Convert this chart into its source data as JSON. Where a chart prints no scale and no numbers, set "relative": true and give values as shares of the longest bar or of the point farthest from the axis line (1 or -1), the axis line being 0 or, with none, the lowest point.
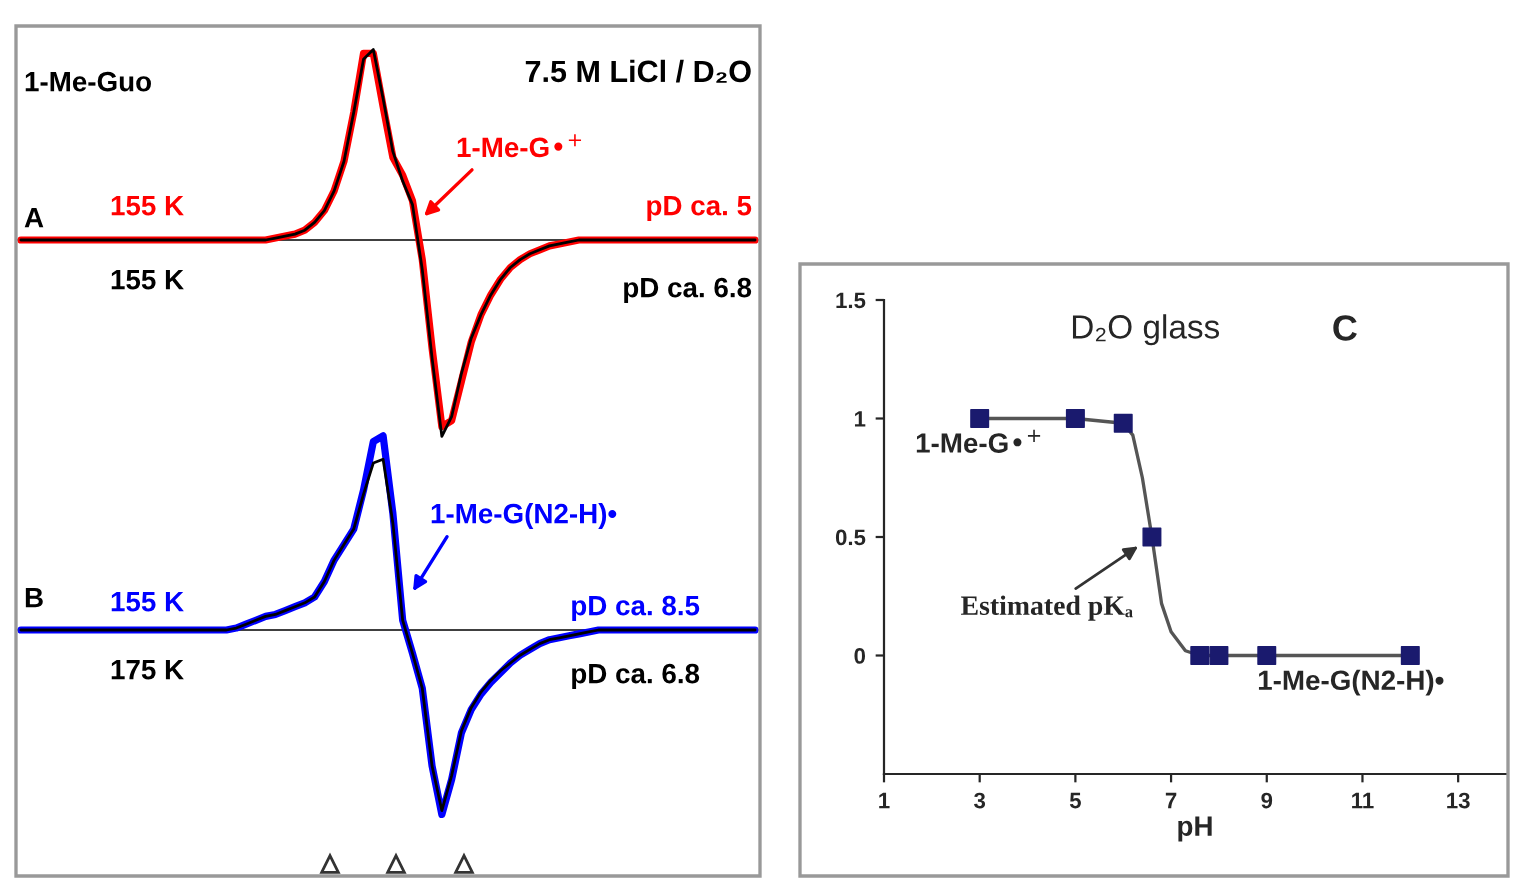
{
  "chart_data": [
    {
      "type": "line",
      "relative": true,
      "categories": [
        null,
        null,
        null,
        null,
        null,
        null,
        null,
        null,
        null,
        null,
        null,
        null,
        null,
        null,
        null,
        null,
        null,
        null,
        null,
        null,
        null,
        null,
        null,
        null,
        null,
        null,
        null,
        null,
        null,
        null,
        null,
        null,
        null,
        null,
        null,
        null,
        null,
        null,
        null,
        null,
        null,
        null,
        null,
        null,
        null,
        null,
        null,
        null,
        null,
        null,
        null,
        null,
        null,
        null,
        null,
        null,
        null,
        null,
        null,
        null,
        null,
        null,
        null,
        null,
        null,
        null,
        null,
        null,
        null,
        null,
        null,
        null,
        null,
        null,
        null,
        null
      ],
      "series": [
        {
          "color": "#ff0000",
          "values": [
            0,
            0,
            0,
            0,
            0,
            0,
            0,
            0,
            0,
            0,
            0,
            0,
            0,
            0,
            0,
            0,
            0,
            0,
            0,
            0,
            0,
            0,
            0,
            0,
            0,
            0,
            0.01,
            0.02,
            0.03,
            0.05,
            0.09,
            0.15,
            0.25,
            0.4,
            0.65,
            0.95,
            0.95,
            0.68,
            0.42,
            0.33,
            0.2,
            -0.1,
            -0.55,
            -0.95,
            -0.92,
            -0.72,
            -0.52,
            -0.38,
            -0.28,
            -0.2,
            -0.14,
            -0.1,
            -0.07,
            -0.05,
            -0.03,
            -0.02,
            -0.01,
            0,
            0,
            0,
            0,
            0,
            0,
            0,
            0,
            0,
            0,
            0,
            0,
            0,
            0,
            0,
            0,
            0,
            0,
            0
          ]
        },
        {
          "color": "#000000",
          "values": [
            0,
            0,
            0,
            0,
            0,
            0,
            0,
            0,
            0,
            0,
            0,
            0,
            0,
            0,
            0,
            0,
            0,
            0,
            0,
            0,
            0,
            0,
            0,
            0,
            0,
            0,
            0.01,
            0.02,
            0.03,
            0.05,
            0.09,
            0.15,
            0.25,
            0.4,
            0.65,
            0.92,
            0.97,
            0.72,
            0.45,
            0.3,
            0.18,
            -0.15,
            -0.6,
            -1.0,
            -0.9,
            -0.68,
            -0.5,
            -0.38,
            -0.28,
            -0.2,
            -0.14,
            -0.1,
            -0.07,
            -0.05,
            -0.03,
            -0.02,
            -0.01,
            0,
            0,
            0,
            0,
            0,
            0,
            0,
            0,
            0,
            0,
            0,
            0,
            0,
            0,
            0,
            0,
            0,
            0,
            0
          ]
        }
      ],
      "annotations": [
        "1-Me-Guo",
        "7.5 M LiCl / D₂O",
        "A",
        "155 K",
        "pD ca. 5",
        "155 K",
        "pD ca. 6.8",
        "1-Me-G•$^{+}$"
      ]
    },
    {
      "type": "line",
      "relative": true,
      "categories": [
        null,
        null,
        null,
        null,
        null,
        null,
        null,
        null,
        null,
        null,
        null,
        null,
        null,
        null,
        null,
        null,
        null,
        null,
        null,
        null,
        null,
        null,
        null,
        null,
        null,
        null,
        null,
        null,
        null,
        null,
        null,
        null,
        null,
        null,
        null,
        null,
        null,
        null,
        null,
        null,
        null,
        null,
        null,
        null,
        null,
        null,
        null,
        null,
        null,
        null,
        null,
        null,
        null,
        null,
        null,
        null,
        null,
        null,
        null,
        null,
        null,
        null,
        null,
        null,
        null,
        null,
        null,
        null,
        null,
        null,
        null,
        null,
        null,
        null,
        null,
        null
      ],
      "series": [
        {
          "color": "#0000ff",
          "values": [
            0,
            0,
            0,
            0,
            0,
            0,
            0,
            0,
            0,
            0,
            0,
            0,
            0,
            0,
            0,
            0,
            0,
            0,
            0,
            0,
            0,
            0,
            0.01,
            0.03,
            0.05,
            0.07,
            0.08,
            0.1,
            0.12,
            0.14,
            0.17,
            0.25,
            0.36,
            0.44,
            0.52,
            0.72,
            0.97,
            1.0,
            0.6,
            0.05,
            -0.12,
            -0.3,
            -0.7,
            -0.95,
            -0.77,
            -0.53,
            -0.41,
            -0.33,
            -0.27,
            -0.22,
            -0.17,
            -0.13,
            -0.1,
            -0.07,
            -0.05,
            -0.04,
            -0.03,
            -0.02,
            -0.01,
            0,
            0,
            0,
            0,
            0,
            0,
            0,
            0,
            0,
            0,
            0,
            0,
            0,
            0,
            0,
            0,
            0
          ]
        },
        {
          "color": "#000000",
          "values": [
            0,
            0,
            0,
            0,
            0,
            0,
            0,
            0,
            0,
            0,
            0,
            0,
            0,
            0,
            0,
            0,
            0,
            0,
            0,
            0,
            0,
            0,
            0.01,
            0.03,
            0.05,
            0.07,
            0.08,
            0.1,
            0.12,
            0.14,
            0.17,
            0.25,
            0.36,
            0.44,
            0.52,
            0.7,
            0.86,
            0.88,
            0.55,
            0.05,
            -0.12,
            -0.3,
            -0.7,
            -0.93,
            -0.75,
            -0.52,
            -0.4,
            -0.32,
            -0.26,
            -0.21,
            -0.17,
            -0.13,
            -0.1,
            -0.07,
            -0.05,
            -0.04,
            -0.03,
            -0.02,
            -0.01,
            0,
            0,
            0,
            0,
            0,
            0,
            0,
            0,
            0,
            0,
            0,
            0,
            0,
            0,
            0,
            0,
            0
          ]
        }
      ],
      "annotations": [
        "B",
        "155 K",
        "pD ca. 8.5",
        "175 K",
        "pD ca. 6.8",
        "1-Me-G(N2-H)•"
      ]
    },
    {
      "type": "scatter",
      "title": "D₂O glass",
      "xlabel": "pH",
      "xlim": [
        1,
        14
      ],
      "xticks": [
        1,
        3,
        5,
        7,
        9,
        11,
        13
      ],
      "ylim": [
        -0.5,
        1.5
      ],
      "yticks": [
        0,
        0.5,
        1,
        1.5
      ],
      "grid": false,
      "legend": false,
      "series": [
        {
          "type": "line",
          "marker": "none",
          "color": "#555555",
          "x": [
            3,
            5,
            6,
            6.2,
            6.4,
            6.6,
            6.8,
            7.0,
            7.3,
            7.6,
            8,
            9,
            12
          ],
          "values": [
            1,
            1,
            0.98,
            0.93,
            0.75,
            0.5,
            0.22,
            0.1,
            0.02,
            0,
            0,
            0,
            0
          ]
        },
        {
          "type": "scatter",
          "marker": "square",
          "color": "#1a1a6e",
          "x": [
            3,
            5,
            6,
            6.6,
            7.6,
            8,
            9,
            12
          ],
          "values": [
            1,
            1,
            0.98,
            0.5,
            0,
            0,
            0,
            0
          ]
        }
      ],
      "annotations": [
        "1-Me-G•$^{+}$",
        "1-Me-G(N2-H)•",
        {
          "text": "Estimated pKₐ",
          "x": 6.6,
          "y": 0.5
        },
        "C"
      ]
    }
  ]
}
